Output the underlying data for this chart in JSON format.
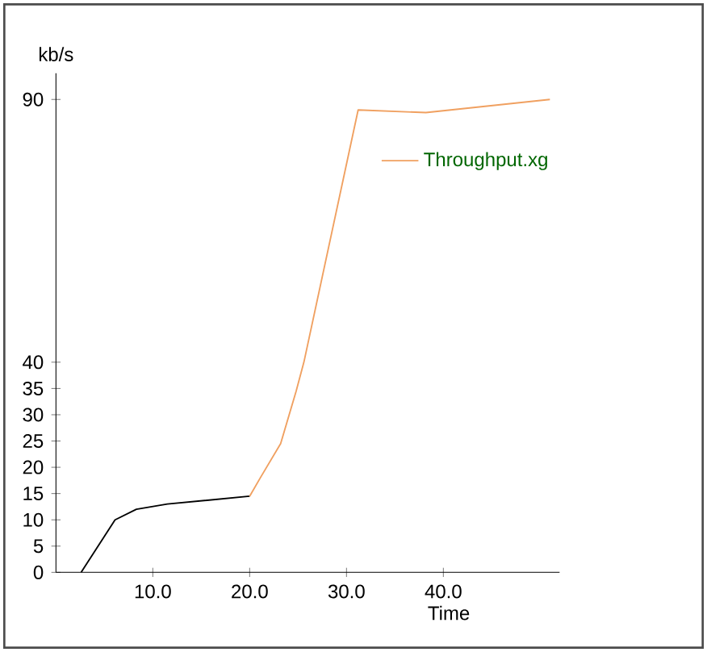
{
  "chart_data": {
    "type": "line",
    "xlabel": "Time",
    "ylabel": "kb/s",
    "xlim": [
      0,
      52
    ],
    "ylim": [
      0,
      95
    ],
    "xticks": [
      {
        "value": 10,
        "label": "10.0"
      },
      {
        "value": 20,
        "label": "20.0"
      },
      {
        "value": 30,
        "label": "30.0"
      },
      {
        "value": 40,
        "label": "40.0"
      }
    ],
    "yticks": [
      0,
      5,
      10,
      15,
      20,
      25,
      30,
      35,
      40,
      90
    ],
    "legend": "top right",
    "marker": "none",
    "line_style": "solid",
    "series": [
      {
        "color": "#000000",
        "x": [
          2.6,
          6.1,
          8.3,
          11.5,
          20
        ],
        "values": [
          0,
          10,
          12,
          13,
          14.5
        ]
      },
      {
        "name": "Throughput.xg",
        "color": "#f0a060",
        "x": [
          20,
          21.1,
          23.2,
          24.8,
          25.6,
          31.2,
          38.2,
          51
        ],
        "values": [
          14.5,
          18,
          24.5,
          34.5,
          40,
          88,
          87.5,
          90
        ]
      }
    ]
  }
}
